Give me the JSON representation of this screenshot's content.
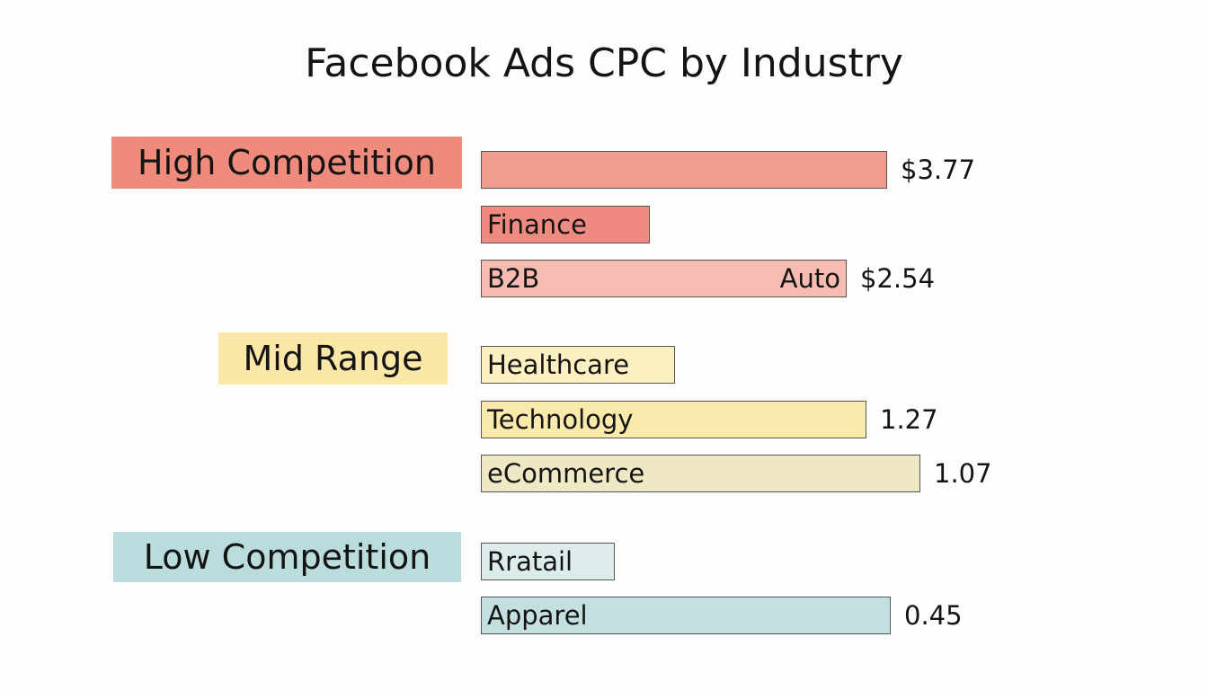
{
  "title": "Facebook Ads CPC by Industry",
  "groups": [
    {
      "label": "High Competition",
      "color": "#ef8b7c",
      "rows": [
        {
          "color": "#f19d8d",
          "value": "$3.77"
        },
        {
          "label": "Finance",
          "color": "#ee8a80"
        },
        {
          "label": "B2B",
          "label_right": "Auto",
          "color": "#f6bcb1",
          "value": "$2.54"
        }
      ]
    },
    {
      "label": "Mid Range",
      "color": "#fbe8a8",
      "rows": [
        {
          "label": "Healthcare",
          "color": "#fcf0c2"
        },
        {
          "label": "Technology",
          "color": "#f9e9ab",
          "value": "1.27"
        },
        {
          "label": "eCommerce",
          "color": "#efe8c5",
          "value": "1.07"
        }
      ]
    },
    {
      "label": "Low Competition",
      "color": "#badcdc",
      "rows": [
        {
          "label": "Rratail",
          "color": "#dcecea"
        },
        {
          "label": "Apparel",
          "color": "#c4dfe0",
          "value": "0.45"
        }
      ]
    }
  ]
}
